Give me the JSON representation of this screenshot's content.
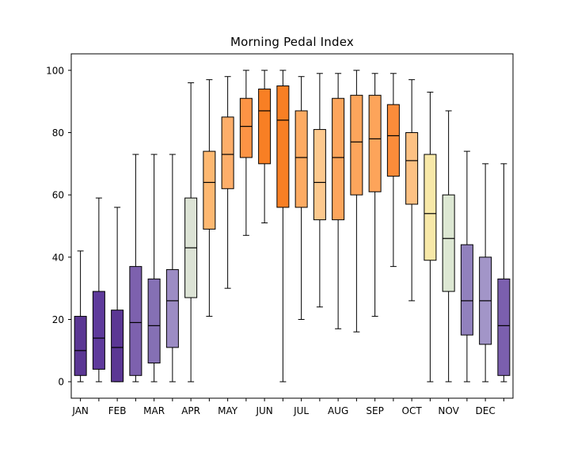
{
  "chart_data": {
    "type": "boxplot",
    "title": "Morning Pedal Index",
    "xlabel": "",
    "ylabel": "",
    "y_ticks": [
      0,
      20,
      40,
      60,
      80,
      100
    ],
    "ylim": [
      -5.3,
      105.3
    ],
    "xlim": [
      0.5,
      24.5
    ],
    "grid": false,
    "boxes_per_month": 2,
    "x_tick_labels": [
      "JAN",
      "FEB",
      "MAR",
      "APR",
      "MAY",
      "JUN",
      "JUL",
      "AUG",
      "SEP",
      "OCT",
      "NOV",
      "DEC"
    ],
    "box_edge_color": "#000000",
    "median_color": "#000000",
    "whisker_color": "#000000",
    "background_color": "#ffffff",
    "boxes": [
      {
        "month": "JAN",
        "slot": 1,
        "whisker_low": 0,
        "q1": 2,
        "median": 10,
        "q3": 21,
        "whisker_high": 42,
        "color": "#5b3794"
      },
      {
        "month": "JAN",
        "slot": 2,
        "whisker_low": 0,
        "q1": 4,
        "median": 14,
        "q3": 29,
        "whisker_high": 59,
        "color": "#5e3a9b"
      },
      {
        "month": "FEB",
        "slot": 1,
        "whisker_low": 0,
        "q1": 0,
        "median": 11,
        "q3": 23,
        "whisker_high": 56,
        "color": "#5b3794"
      },
      {
        "month": "FEB",
        "slot": 2,
        "whisker_low": 0,
        "q1": 2,
        "median": 19,
        "q3": 37,
        "whisker_high": 73,
        "color": "#7d61ae"
      },
      {
        "month": "MAR",
        "slot": 1,
        "whisker_low": 0,
        "q1": 6,
        "median": 18,
        "q3": 33,
        "whisker_high": 73,
        "color": "#8570b4"
      },
      {
        "month": "MAR",
        "slot": 2,
        "whisker_low": 0,
        "q1": 11,
        "median": 26,
        "q3": 36,
        "whisker_high": 73,
        "color": "#9c8cc4"
      },
      {
        "month": "APR",
        "slot": 1,
        "whisker_low": 0,
        "q1": 27,
        "median": 43,
        "q3": 59,
        "whisker_high": 96,
        "color": "#dce3d5"
      },
      {
        "month": "APR",
        "slot": 2,
        "whisker_low": 21,
        "q1": 49,
        "median": 64,
        "q3": 74,
        "whisker_high": 97,
        "color": "#fdb871"
      },
      {
        "month": "MAY",
        "slot": 1,
        "whisker_low": 30,
        "q1": 62,
        "median": 73,
        "q3": 85,
        "whisker_high": 98,
        "color": "#fdae6a"
      },
      {
        "month": "MAY",
        "slot": 2,
        "whisker_low": 47,
        "q1": 72,
        "median": 82,
        "q3": 91,
        "whisker_high": 100,
        "color": "#fd9445"
      },
      {
        "month": "JUN",
        "slot": 1,
        "whisker_low": 51,
        "q1": 70,
        "median": 87,
        "q3": 94,
        "whisker_high": 100,
        "color": "#f87f24"
      },
      {
        "month": "JUN",
        "slot": 2,
        "whisker_low": 0,
        "q1": 56,
        "median": 84,
        "q3": 95,
        "whisker_high": 100,
        "color": "#f87f24"
      },
      {
        "month": "JUL",
        "slot": 1,
        "whisker_low": 20,
        "q1": 56,
        "median": 72,
        "q3": 87,
        "whisker_high": 98,
        "color": "#fdab63"
      },
      {
        "month": "JUL",
        "slot": 2,
        "whisker_low": 24,
        "q1": 52,
        "median": 64,
        "q3": 81,
        "whisker_high": 99,
        "color": "#fdc98e"
      },
      {
        "month": "AUG",
        "slot": 1,
        "whisker_low": 17,
        "q1": 52,
        "median": 72,
        "q3": 91,
        "whisker_high": 99,
        "color": "#fda55c"
      },
      {
        "month": "AUG",
        "slot": 2,
        "whisker_low": 16,
        "q1": 60,
        "median": 77,
        "q3": 92,
        "whisker_high": 100,
        "color": "#fda55c"
      },
      {
        "month": "SEP",
        "slot": 1,
        "whisker_low": 21,
        "q1": 61,
        "median": 78,
        "q3": 92,
        "whisker_high": 99,
        "color": "#fda45a"
      },
      {
        "month": "SEP",
        "slot": 2,
        "whisker_low": 37,
        "q1": 66,
        "median": 79,
        "q3": 89,
        "whisker_high": 99,
        "color": "#fb8c3a"
      },
      {
        "month": "OCT",
        "slot": 1,
        "whisker_low": 26,
        "q1": 57,
        "median": 71,
        "q3": 80,
        "whisker_high": 97,
        "color": "#fdc183"
      },
      {
        "month": "OCT",
        "slot": 2,
        "whisker_low": 0,
        "q1": 39,
        "median": 54,
        "q3": 73,
        "whisker_high": 93,
        "color": "#f7e8a8"
      },
      {
        "month": "NOV",
        "slot": 1,
        "whisker_low": 0,
        "q1": 29,
        "median": 46,
        "q3": 60,
        "whisker_high": 87,
        "color": "#dde8d3"
      },
      {
        "month": "NOV",
        "slot": 2,
        "whisker_low": 0,
        "q1": 15,
        "median": 26,
        "q3": 44,
        "whisker_high": 74,
        "color": "#9181bd"
      },
      {
        "month": "DEC",
        "slot": 1,
        "whisker_low": 0,
        "q1": 12,
        "median": 26,
        "q3": 40,
        "whisker_high": 70,
        "color": "#a295c8"
      },
      {
        "month": "DEC",
        "slot": 2,
        "whisker_low": 0,
        "q1": 2,
        "median": 18,
        "q3": 33,
        "whisker_high": 70,
        "color": "#7b5fae"
      }
    ]
  }
}
